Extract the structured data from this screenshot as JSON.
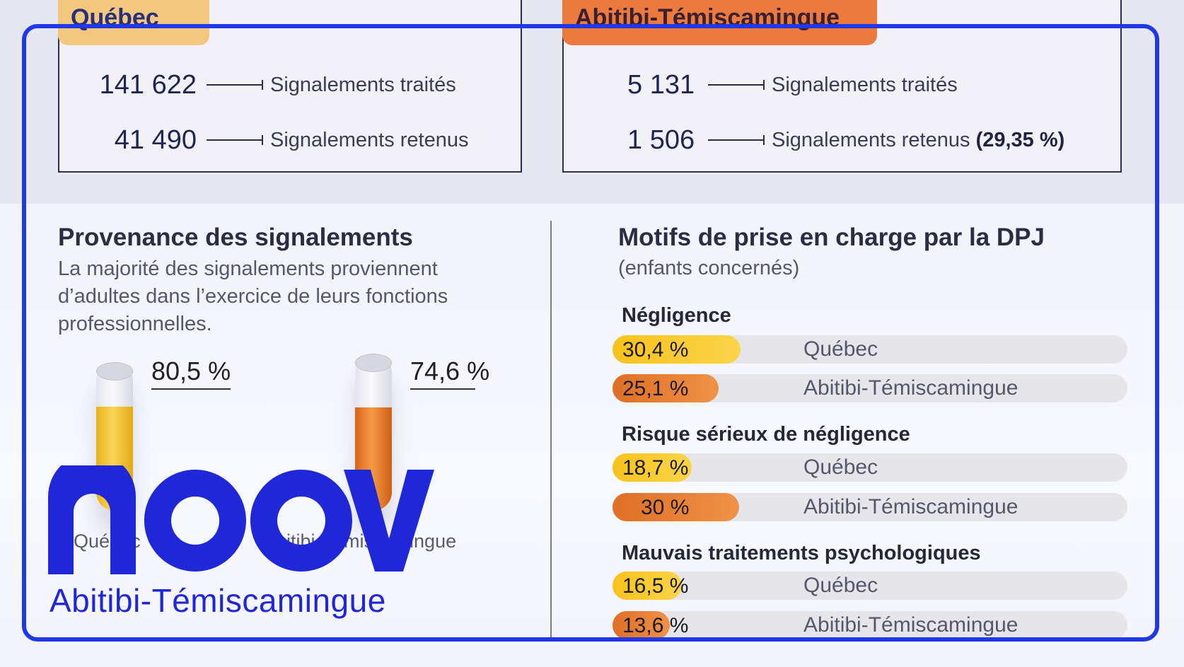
{
  "stats": {
    "quebec": {
      "region": "Québec",
      "treated_value": "141 622",
      "treated_label": "Signalements traités",
      "retained_value": "41 490",
      "retained_label": "Signalements retenus"
    },
    "abitibi": {
      "region": "Abitibi-Témiscamingue",
      "treated_value": "5 131",
      "treated_label": "Signalements traités",
      "retained_value": "1 506",
      "retained_label": "Signalements retenus",
      "retained_pct": "(29,35 %)"
    }
  },
  "provenance": {
    "title": "Provenance des signalements",
    "line1": "La majorité des signalements proviennent",
    "line2": "d’adultes dans l’exercice de leurs fonctions",
    "line3": "professionnelles.",
    "tubes": [
      {
        "label": "80,5 %",
        "value": 80.5,
        "region": "Québec"
      },
      {
        "label": "74,6 %",
        "value": 74.6,
        "region": "Abitibi-Témiscamingue"
      }
    ]
  },
  "motifs": {
    "title": "Motifs de prise en charge par la DPJ",
    "subtitle": "(enfants concernés)",
    "categories": [
      {
        "name": "Négligence",
        "rows": [
          {
            "label": "30,4 %",
            "value": 30.4,
            "region": "Québec"
          },
          {
            "label": "25,1 %",
            "value": 25.1,
            "region": "Abitibi-Témiscamingue"
          }
        ]
      },
      {
        "name": "Risque sérieux de négligence",
        "rows": [
          {
            "label": "18,7 %",
            "value": 18.7,
            "region": "Québec"
          },
          {
            "label": "30 %",
            "value": 30,
            "region": "Abitibi-Témiscamingue"
          }
        ]
      },
      {
        "name": "Mauvais traitements psychologiques",
        "rows": [
          {
            "label": "16,5 %",
            "value": 16.5,
            "region": "Québec"
          },
          {
            "label": "13,6 %",
            "value": 13.6,
            "region": "Abitibi-Témiscamingue"
          }
        ]
      }
    ]
  },
  "colors": {
    "quebec": "#f5c228",
    "abitibi": "#e3782a",
    "frame": "#1f39e8"
  },
  "logo": {
    "word": "noovo",
    "sub": "Abitibi-Témiscamingue"
  }
}
